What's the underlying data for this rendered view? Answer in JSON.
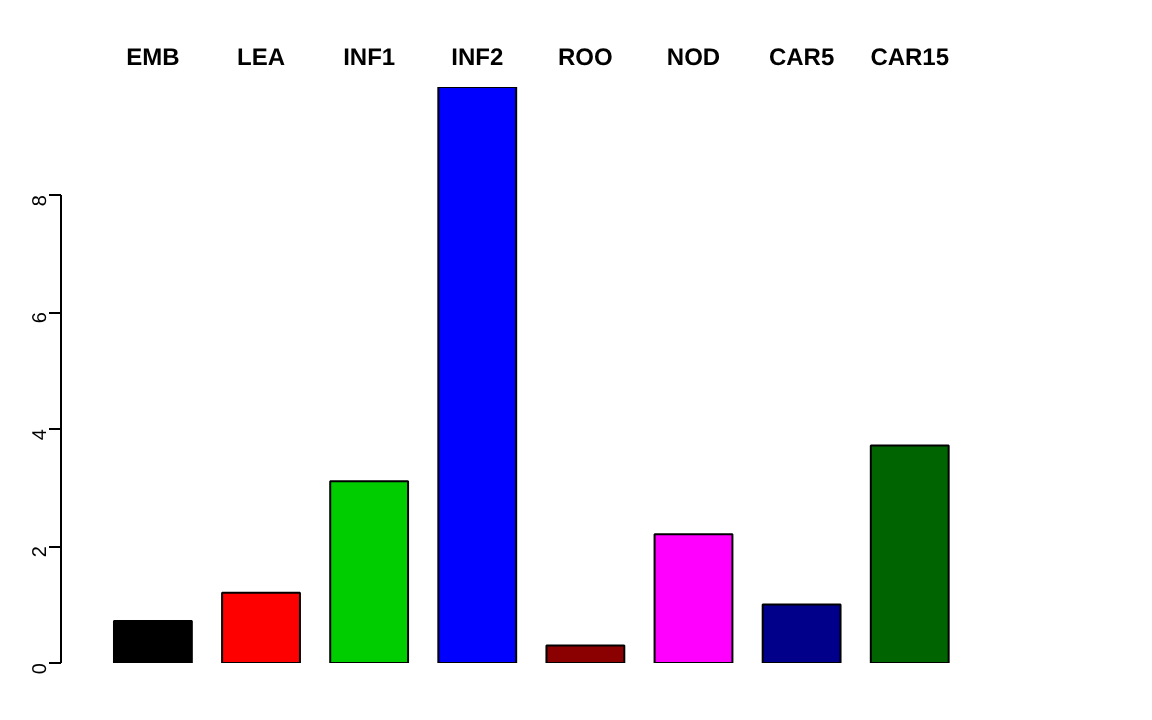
{
  "chart_data": {
    "type": "bar",
    "categories": [
      "EMB",
      "LEA",
      "INF1",
      "INF2",
      "ROO",
      "NOD",
      "CAR5",
      "CAR15"
    ],
    "values": [
      0.72,
      1.2,
      3.11,
      9.85,
      0.3,
      2.2,
      1.0,
      3.72
    ],
    "colors": [
      "#000000",
      "#ff0000",
      "#00cd00",
      "#0000ff",
      "#8b0000",
      "#ff00ff",
      "#00008b",
      "#006400"
    ],
    "ylim": [
      0,
      9.85
    ],
    "yticks": [
      0,
      2,
      4,
      6,
      8
    ],
    "grid": false
  }
}
